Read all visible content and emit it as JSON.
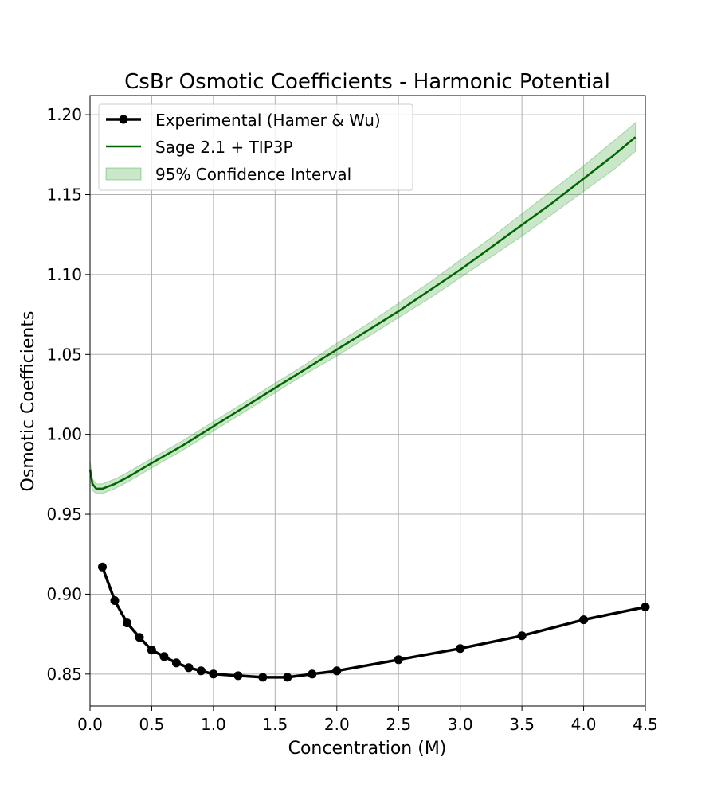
{
  "chart_data": {
    "type": "line",
    "title": "CsBr Osmotic Coefficients - Harmonic Potential",
    "xlabel": "Concentration (M)",
    "ylabel": "Osmotic Coefficients",
    "xlim": [
      0.0,
      4.5
    ],
    "ylim": [
      0.83,
      1.212
    ],
    "xticks": [
      "0.0",
      "0.5",
      "1.0",
      "1.5",
      "2.0",
      "2.5",
      "3.0",
      "3.5",
      "4.0",
      "4.5"
    ],
    "yticks": [
      "0.85",
      "0.90",
      "0.95",
      "1.00",
      "1.05",
      "1.10",
      "1.15",
      "1.20"
    ],
    "grid": true,
    "legend_position": "top-left",
    "series": [
      {
        "name": "Experimental (Hamer & Wu)",
        "color": "#000000",
        "marker": "circle",
        "x": [
          0.1,
          0.2,
          0.3,
          0.4,
          0.5,
          0.6,
          0.7,
          0.8,
          0.9,
          1.0,
          1.2,
          1.4,
          1.6,
          1.8,
          2.0,
          2.5,
          3.0,
          3.5,
          4.0,
          4.5
        ],
        "y": [
          0.917,
          0.896,
          0.882,
          0.873,
          0.865,
          0.861,
          0.857,
          0.854,
          0.852,
          0.85,
          0.849,
          0.848,
          0.848,
          0.85,
          0.852,
          0.859,
          0.866,
          0.874,
          0.884,
          0.892
        ]
      },
      {
        "name": "Sage 2.1 + TIP3P",
        "color": "#006400",
        "x": [
          0.0,
          0.02,
          0.05,
          0.1,
          0.2,
          0.3,
          0.5,
          0.75,
          1.0,
          1.25,
          1.5,
          1.75,
          2.0,
          2.25,
          2.5,
          2.75,
          3.0,
          3.25,
          3.5,
          3.75,
          4.0,
          4.25,
          4.42
        ],
        "y": [
          0.978,
          0.969,
          0.966,
          0.966,
          0.969,
          0.973,
          0.982,
          0.993,
          1.005,
          1.017,
          1.029,
          1.041,
          1.053,
          1.065,
          1.077,
          1.09,
          1.103,
          1.117,
          1.131,
          1.145,
          1.16,
          1.175,
          1.186
        ]
      },
      {
        "name": "95% Confidence Interval",
        "color": "#2ca02c",
        "opacity": 0.25,
        "x": [
          0.0,
          0.02,
          0.05,
          0.1,
          0.2,
          0.3,
          0.5,
          0.75,
          1.0,
          1.25,
          1.5,
          1.75,
          2.0,
          2.25,
          2.5,
          2.75,
          3.0,
          3.25,
          3.5,
          3.75,
          4.0,
          4.25,
          4.42
        ],
        "lower": [
          0.972,
          0.965,
          0.963,
          0.963,
          0.966,
          0.97,
          0.979,
          0.99,
          1.002,
          1.014,
          1.026,
          1.038,
          1.049,
          1.061,
          1.073,
          1.085,
          1.098,
          1.111,
          1.124,
          1.138,
          1.152,
          1.166,
          1.177
        ],
        "upper": [
          0.984,
          0.972,
          0.969,
          0.969,
          0.972,
          0.976,
          0.985,
          0.996,
          1.008,
          1.02,
          1.032,
          1.044,
          1.057,
          1.069,
          1.082,
          1.095,
          1.109,
          1.123,
          1.138,
          1.153,
          1.168,
          1.184,
          1.195
        ]
      }
    ]
  }
}
